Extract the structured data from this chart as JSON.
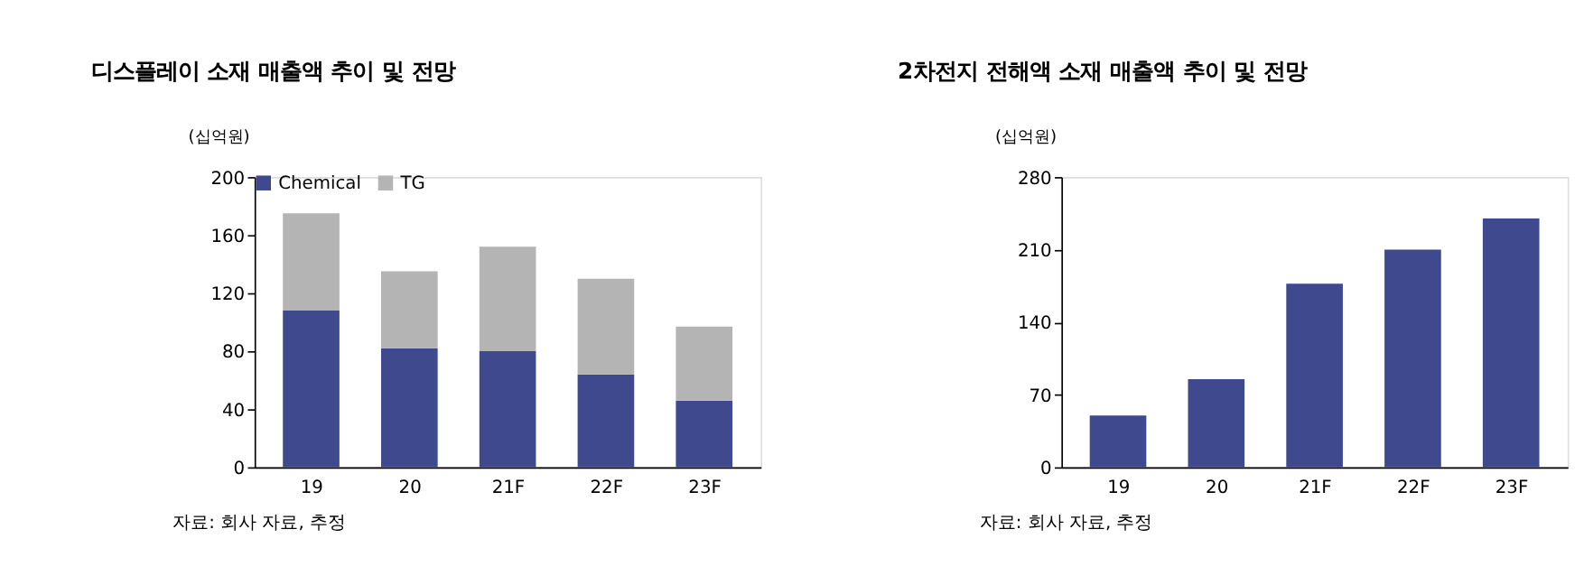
{
  "chart_data": [
    {
      "type": "bar",
      "title": "디스플레이 소재 매출액 추이 및 전망",
      "ylabel": "(십억원)",
      "categories": [
        "19",
        "20",
        "21F",
        "22F",
        "23F"
      ],
      "stacked": true,
      "series": [
        {
          "name": "Chemical",
          "color": "#3f4a8e",
          "values": [
            108,
            82,
            80,
            64,
            46
          ]
        },
        {
          "name": "TG",
          "color": "#b4b4b4",
          "values": [
            67,
            53,
            72,
            66,
            51
          ]
        }
      ],
      "ylim": [
        0,
        200
      ],
      "yticks": [
        0,
        40,
        80,
        120,
        160,
        200
      ],
      "legend": "top",
      "annotations": [
        "자료: 회사 자료, 추정"
      ]
    },
    {
      "type": "bar",
      "title": "2차전지 전해액 소재 매출액 추이 및 전망",
      "ylabel": "(십억원)",
      "categories": [
        "19",
        "20",
        "21F",
        "22F",
        "23F"
      ],
      "series": [
        {
          "color": "#3f4a8e",
          "values": [
            50,
            85,
            177,
            210,
            240
          ]
        }
      ],
      "ylim": [
        0,
        280
      ],
      "yticks": [
        0,
        70,
        140,
        210,
        280
      ],
      "annotations": [
        "자료: 회사 자료, 추정"
      ]
    }
  ]
}
